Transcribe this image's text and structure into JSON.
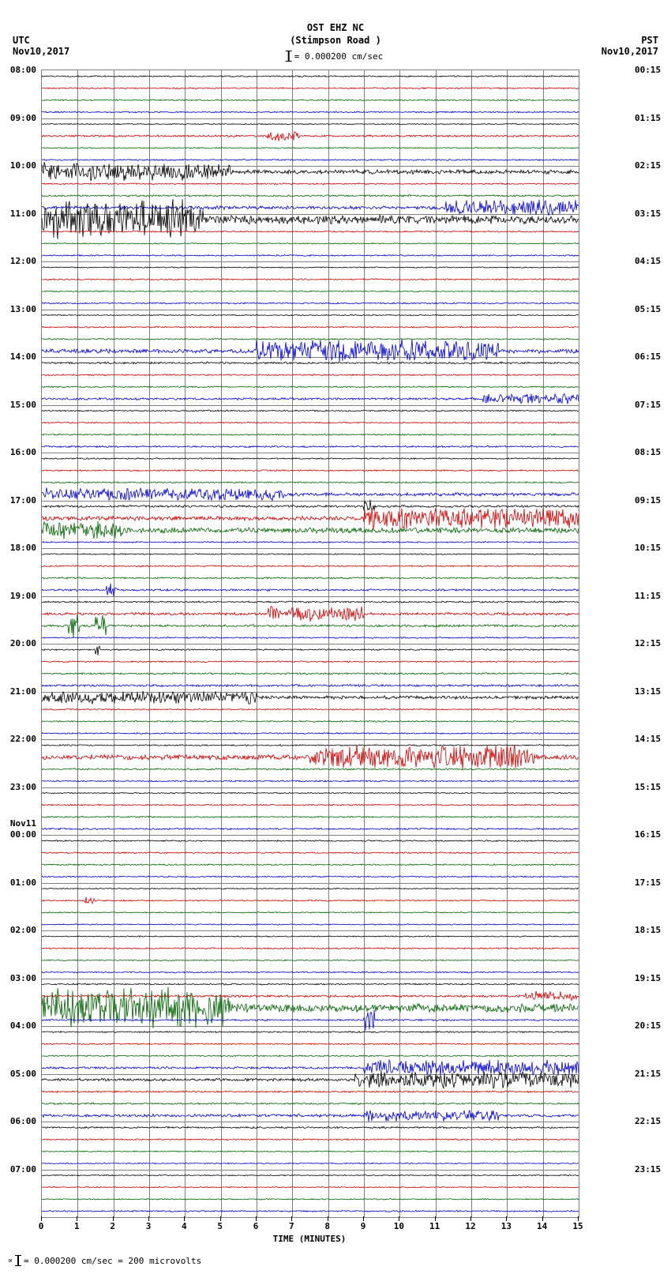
{
  "header": {
    "station": "OST EHZ NC",
    "location": "(Stimpson Road )",
    "scale_text": "= 0.000200 cm/sec"
  },
  "timezone_left": "UTC",
  "timezone_right": "PST",
  "date_left": "Nov10,2017",
  "date_right": "Nov10,2017",
  "date_mark_left": "Nov11",
  "footer": "= 0.000200 cm/sec =    200 microvolts",
  "xaxis": {
    "label": "TIME (MINUTES)",
    "ticks": [
      0,
      1,
      2,
      3,
      4,
      5,
      6,
      7,
      8,
      9,
      10,
      11,
      12,
      13,
      14,
      15
    ],
    "xlim": [
      0,
      15
    ]
  },
  "plot": {
    "n_traces": 96,
    "n_hours": 24,
    "colors_cycle": [
      "#000000",
      "#cc0000",
      "#006400",
      "#0000cc"
    ],
    "grid_color": "#808080",
    "background": "#ffffff",
    "hour_labels_left": [
      "08:00",
      "09:00",
      "10:00",
      "11:00",
      "12:00",
      "13:00",
      "14:00",
      "15:00",
      "16:00",
      "17:00",
      "18:00",
      "19:00",
      "20:00",
      "21:00",
      "22:00",
      "23:00",
      "00:00",
      "01:00",
      "02:00",
      "03:00",
      "04:00",
      "05:00",
      "06:00",
      "07:00"
    ],
    "hour_labels_right": [
      "00:15",
      "01:15",
      "02:15",
      "03:15",
      "04:15",
      "05:15",
      "06:15",
      "07:15",
      "08:15",
      "09:15",
      "10:15",
      "11:15",
      "12:15",
      "13:15",
      "14:15",
      "15:15",
      "16:15",
      "17:15",
      "18:15",
      "19:15",
      "20:15",
      "21:15",
      "22:15",
      "23:15"
    ],
    "date_change_at_hour_index": 16,
    "traces": [
      {
        "i": 0,
        "amp": 0.5,
        "bursts": []
      },
      {
        "i": 1,
        "amp": 0.5,
        "bursts": []
      },
      {
        "i": 2,
        "amp": 0.5,
        "bursts": []
      },
      {
        "i": 3,
        "amp": 0.5,
        "bursts": []
      },
      {
        "i": 4,
        "amp": 0.4,
        "bursts": []
      },
      {
        "i": 5,
        "amp": 0.7,
        "bursts": [
          [
            0.42,
            0.48,
            2.0
          ]
        ]
      },
      {
        "i": 6,
        "amp": 0.4,
        "bursts": []
      },
      {
        "i": 7,
        "amp": 0.5,
        "bursts": []
      },
      {
        "i": 8,
        "amp": 1.5,
        "bursts": [
          [
            0.0,
            0.35,
            2.5
          ]
        ]
      },
      {
        "i": 9,
        "amp": 0.5,
        "bursts": []
      },
      {
        "i": 10,
        "amp": 0.6,
        "bursts": []
      },
      {
        "i": 11,
        "amp": 1.2,
        "bursts": [
          [
            0.75,
            1.0,
            2.5
          ]
        ]
      },
      {
        "i": 12,
        "amp": 3.0,
        "bursts": [
          [
            0.0,
            0.3,
            3.5
          ]
        ]
      },
      {
        "i": 13,
        "amp": 0.5,
        "bursts": []
      },
      {
        "i": 14,
        "amp": 0.4,
        "bursts": []
      },
      {
        "i": 15,
        "amp": 0.5,
        "bursts": []
      },
      {
        "i": 16,
        "amp": 0.4,
        "bursts": []
      },
      {
        "i": 17,
        "amp": 0.5,
        "bursts": []
      },
      {
        "i": 18,
        "amp": 0.4,
        "bursts": []
      },
      {
        "i": 19,
        "amp": 0.5,
        "bursts": []
      },
      {
        "i": 20,
        "amp": 0.4,
        "bursts": []
      },
      {
        "i": 21,
        "amp": 0.5,
        "bursts": []
      },
      {
        "i": 22,
        "amp": 0.5,
        "bursts": []
      },
      {
        "i": 23,
        "amp": 1.5,
        "bursts": [
          [
            0.4,
            0.85,
            3.0
          ]
        ]
      },
      {
        "i": 24,
        "amp": 0.7,
        "bursts": []
      },
      {
        "i": 25,
        "amp": 0.5,
        "bursts": []
      },
      {
        "i": 26,
        "amp": 0.5,
        "bursts": []
      },
      {
        "i": 27,
        "amp": 0.8,
        "bursts": [
          [
            0.82,
            1.0,
            2.0
          ]
        ]
      },
      {
        "i": 28,
        "amp": 0.5,
        "bursts": []
      },
      {
        "i": 29,
        "amp": 0.5,
        "bursts": []
      },
      {
        "i": 30,
        "amp": 0.5,
        "bursts": []
      },
      {
        "i": 31,
        "amp": 0.6,
        "bursts": []
      },
      {
        "i": 32,
        "amp": 0.5,
        "bursts": []
      },
      {
        "i": 33,
        "amp": 0.5,
        "bursts": []
      },
      {
        "i": 34,
        "amp": 0.5,
        "bursts": []
      },
      {
        "i": 35,
        "amp": 1.2,
        "bursts": [
          [
            0.0,
            0.45,
            2.0
          ]
        ]
      },
      {
        "i": 36,
        "amp": 0.8,
        "bursts": [
          [
            0.6,
            0.62,
            3.0
          ]
        ]
      },
      {
        "i": 37,
        "amp": 1.5,
        "bursts": [
          [
            0.6,
            1.0,
            3.0
          ]
        ]
      },
      {
        "i": 38,
        "amp": 2.0,
        "bursts": [
          [
            0.0,
            0.15,
            2.0
          ]
        ]
      },
      {
        "i": 39,
        "amp": 0.5,
        "bursts": []
      },
      {
        "i": 40,
        "amp": 0.4,
        "bursts": []
      },
      {
        "i": 41,
        "amp": 0.5,
        "bursts": []
      },
      {
        "i": 42,
        "amp": 0.6,
        "bursts": []
      },
      {
        "i": 43,
        "amp": 0.7,
        "bursts": [
          [
            0.12,
            0.14,
            3.0
          ]
        ]
      },
      {
        "i": 44,
        "amp": 0.6,
        "bursts": []
      },
      {
        "i": 45,
        "amp": 1.0,
        "bursts": [
          [
            0.42,
            0.6,
            2.5
          ]
        ]
      },
      {
        "i": 46,
        "amp": 0.8,
        "bursts": [
          [
            0.05,
            0.07,
            5.0
          ],
          [
            0.1,
            0.12,
            5.0
          ]
        ]
      },
      {
        "i": 47,
        "amp": 0.5,
        "bursts": []
      },
      {
        "i": 48,
        "amp": 0.5,
        "bursts": [
          [
            0.1,
            0.11,
            4.0
          ]
        ]
      },
      {
        "i": 49,
        "amp": 0.5,
        "bursts": []
      },
      {
        "i": 50,
        "amp": 0.6,
        "bursts": []
      },
      {
        "i": 51,
        "amp": 0.8,
        "bursts": []
      },
      {
        "i": 52,
        "amp": 1.2,
        "bursts": [
          [
            0.0,
            0.4,
            2.0
          ]
        ]
      },
      {
        "i": 53,
        "amp": 0.5,
        "bursts": []
      },
      {
        "i": 54,
        "amp": 0.5,
        "bursts": []
      },
      {
        "i": 55,
        "amp": 0.5,
        "bursts": []
      },
      {
        "i": 56,
        "amp": 0.5,
        "bursts": []
      },
      {
        "i": 57,
        "amp": 1.8,
        "bursts": [
          [
            0.5,
            0.92,
            3.0
          ]
        ]
      },
      {
        "i": 58,
        "amp": 0.6,
        "bursts": []
      },
      {
        "i": 59,
        "amp": 0.5,
        "bursts": []
      },
      {
        "i": 60,
        "amp": 0.4,
        "bursts": []
      },
      {
        "i": 61,
        "amp": 0.5,
        "bursts": []
      },
      {
        "i": 62,
        "amp": 0.5,
        "bursts": []
      },
      {
        "i": 63,
        "amp": 0.6,
        "bursts": []
      },
      {
        "i": 64,
        "amp": 0.5,
        "bursts": []
      },
      {
        "i": 65,
        "amp": 0.5,
        "bursts": []
      },
      {
        "i": 66,
        "amp": 0.5,
        "bursts": []
      },
      {
        "i": 67,
        "amp": 0.5,
        "bursts": []
      },
      {
        "i": 68,
        "amp": 0.4,
        "bursts": []
      },
      {
        "i": 69,
        "amp": 0.5,
        "bursts": [
          [
            0.08,
            0.1,
            2.0
          ]
        ]
      },
      {
        "i": 70,
        "amp": 0.4,
        "bursts": []
      },
      {
        "i": 71,
        "amp": 0.4,
        "bursts": []
      },
      {
        "i": 72,
        "amp": 0.4,
        "bursts": []
      },
      {
        "i": 73,
        "amp": 0.5,
        "bursts": []
      },
      {
        "i": 74,
        "amp": 0.4,
        "bursts": []
      },
      {
        "i": 75,
        "amp": 0.5,
        "bursts": []
      },
      {
        "i": 76,
        "amp": 0.5,
        "bursts": []
      },
      {
        "i": 77,
        "amp": 0.8,
        "bursts": [
          [
            0.9,
            1.0,
            2.0
          ]
        ]
      },
      {
        "i": 78,
        "amp": 3.0,
        "bursts": [
          [
            0.0,
            0.35,
            3.5
          ]
        ]
      },
      {
        "i": 79,
        "amp": 0.6,
        "bursts": [
          [
            0.6,
            0.62,
            6.0
          ]
        ]
      },
      {
        "i": 80,
        "amp": 0.5,
        "bursts": []
      },
      {
        "i": 81,
        "amp": 0.5,
        "bursts": []
      },
      {
        "i": 82,
        "amp": 0.5,
        "bursts": []
      },
      {
        "i": 83,
        "amp": 0.8,
        "bursts": [
          [
            0.6,
            1.0,
            3.0
          ]
        ]
      },
      {
        "i": 84,
        "amp": 1.0,
        "bursts": [
          [
            0.58,
            1.0,
            3.0
          ]
        ]
      },
      {
        "i": 85,
        "amp": 0.6,
        "bursts": []
      },
      {
        "i": 86,
        "amp": 0.6,
        "bursts": []
      },
      {
        "i": 87,
        "amp": 1.0,
        "bursts": [
          [
            0.6,
            0.85,
            2.0
          ]
        ]
      },
      {
        "i": 88,
        "amp": 0.6,
        "bursts": []
      },
      {
        "i": 89,
        "amp": 0.5,
        "bursts": []
      },
      {
        "i": 90,
        "amp": 0.4,
        "bursts": []
      },
      {
        "i": 91,
        "amp": 0.4,
        "bursts": []
      },
      {
        "i": 92,
        "amp": 0.4,
        "bursts": []
      },
      {
        "i": 93,
        "amp": 0.4,
        "bursts": []
      },
      {
        "i": 94,
        "amp": 0.4,
        "bursts": []
      },
      {
        "i": 95,
        "amp": 0.5,
        "bursts": []
      }
    ]
  }
}
